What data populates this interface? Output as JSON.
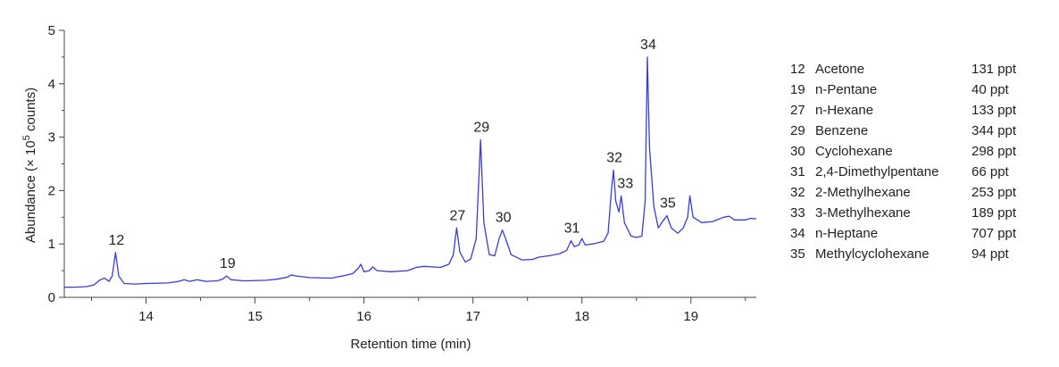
{
  "chart_data": {
    "type": "line",
    "title": "",
    "xlabel": "Retention time (min)",
    "ylabel": "Abundance (× 10",
    "ylabel_sup": "5",
    "ylabel_tail": " counts)",
    "xlim": [
      13.25,
      19.6
    ],
    "ylim": [
      0,
      5
    ],
    "x_ticks": [
      14,
      15,
      16,
      17,
      18,
      19
    ],
    "y_ticks": [
      0,
      1,
      2,
      3,
      4,
      5
    ],
    "grid": false,
    "line_color": "#3a3ae0",
    "series": [
      {
        "points": [
          [
            13.25,
            0.19
          ],
          [
            13.35,
            0.19
          ],
          [
            13.45,
            0.2
          ],
          [
            13.52,
            0.23
          ],
          [
            13.58,
            0.33
          ],
          [
            13.62,
            0.36
          ],
          [
            13.66,
            0.3
          ],
          [
            13.69,
            0.4
          ],
          [
            13.72,
            0.84
          ],
          [
            13.75,
            0.4
          ],
          [
            13.8,
            0.26
          ],
          [
            13.9,
            0.25
          ],
          [
            14.0,
            0.26
          ],
          [
            14.2,
            0.27
          ],
          [
            14.3,
            0.3
          ],
          [
            14.35,
            0.33
          ],
          [
            14.4,
            0.3
          ],
          [
            14.47,
            0.33
          ],
          [
            14.55,
            0.3
          ],
          [
            14.65,
            0.31
          ],
          [
            14.7,
            0.34
          ],
          [
            14.74,
            0.4
          ],
          [
            14.78,
            0.33
          ],
          [
            14.9,
            0.31
          ],
          [
            15.1,
            0.32
          ],
          [
            15.2,
            0.34
          ],
          [
            15.3,
            0.38
          ],
          [
            15.33,
            0.42
          ],
          [
            15.38,
            0.4
          ],
          [
            15.5,
            0.37
          ],
          [
            15.7,
            0.36
          ],
          [
            15.85,
            0.42
          ],
          [
            15.9,
            0.45
          ],
          [
            15.95,
            0.55
          ],
          [
            15.97,
            0.62
          ],
          [
            16.0,
            0.48
          ],
          [
            16.05,
            0.5
          ],
          [
            16.08,
            0.57
          ],
          [
            16.12,
            0.5
          ],
          [
            16.25,
            0.48
          ],
          [
            16.4,
            0.5
          ],
          [
            16.48,
            0.56
          ],
          [
            16.55,
            0.58
          ],
          [
            16.7,
            0.56
          ],
          [
            16.78,
            0.62
          ],
          [
            16.82,
            0.8
          ],
          [
            16.85,
            1.3
          ],
          [
            16.88,
            0.85
          ],
          [
            16.93,
            0.66
          ],
          [
            16.98,
            0.72
          ],
          [
            17.03,
            1.1
          ],
          [
            17.07,
            2.95
          ],
          [
            17.1,
            1.4
          ],
          [
            17.15,
            0.8
          ],
          [
            17.2,
            0.78
          ],
          [
            17.24,
            1.1
          ],
          [
            17.27,
            1.26
          ],
          [
            17.3,
            1.1
          ],
          [
            17.35,
            0.8
          ],
          [
            17.45,
            0.7
          ],
          [
            17.55,
            0.71
          ],
          [
            17.6,
            0.75
          ],
          [
            17.7,
            0.78
          ],
          [
            17.8,
            0.82
          ],
          [
            17.86,
            0.88
          ],
          [
            17.9,
            1.06
          ],
          [
            17.93,
            0.95
          ],
          [
            17.97,
            0.98
          ],
          [
            18.0,
            1.1
          ],
          [
            18.03,
            0.98
          ],
          [
            18.1,
            1.0
          ],
          [
            18.2,
            1.05
          ],
          [
            18.24,
            1.2
          ],
          [
            18.27,
            2.0
          ],
          [
            18.29,
            2.38
          ],
          [
            18.31,
            1.8
          ],
          [
            18.34,
            1.6
          ],
          [
            18.36,
            1.9
          ],
          [
            18.39,
            1.4
          ],
          [
            18.45,
            1.15
          ],
          [
            18.5,
            1.12
          ],
          [
            18.55,
            1.15
          ],
          [
            18.58,
            1.8
          ],
          [
            18.6,
            4.5
          ],
          [
            18.62,
            2.8
          ],
          [
            18.66,
            1.7
          ],
          [
            18.7,
            1.3
          ],
          [
            18.75,
            1.45
          ],
          [
            18.78,
            1.53
          ],
          [
            18.82,
            1.3
          ],
          [
            18.88,
            1.2
          ],
          [
            18.93,
            1.3
          ],
          [
            18.97,
            1.5
          ],
          [
            18.99,
            1.9
          ],
          [
            19.02,
            1.5
          ],
          [
            19.1,
            1.4
          ],
          [
            19.2,
            1.42
          ],
          [
            19.3,
            1.5
          ],
          [
            19.35,
            1.52
          ],
          [
            19.4,
            1.45
          ],
          [
            19.5,
            1.45
          ],
          [
            19.55,
            1.48
          ],
          [
            19.6,
            1.47
          ]
        ]
      }
    ],
    "peak_labels": [
      {
        "text": "12",
        "x": 13.72,
        "y": 0.84
      },
      {
        "text": "19",
        "x": 14.74,
        "y": 0.4
      },
      {
        "text": "27",
        "x": 16.85,
        "y": 1.3
      },
      {
        "text": "29",
        "x": 17.07,
        "y": 2.95
      },
      {
        "text": "30",
        "x": 17.27,
        "y": 1.26
      },
      {
        "text": "31",
        "x": 17.9,
        "y": 1.06
      },
      {
        "text": "32",
        "x": 18.29,
        "y": 2.38
      },
      {
        "text": "33",
        "x": 18.39,
        "y": 1.9
      },
      {
        "text": "34",
        "x": 18.6,
        "y": 4.5
      },
      {
        "text": "35",
        "x": 18.78,
        "y": 1.53
      }
    ],
    "legend_placement": "right"
  },
  "legend": [
    {
      "num": "12",
      "name": "Acetone",
      "amount": "131 ppt"
    },
    {
      "num": "19",
      "name": "n-Pentane",
      "amount": "40 ppt"
    },
    {
      "num": "27",
      "name": "n-Hexane",
      "amount": "133 ppt"
    },
    {
      "num": "29",
      "name": "Benzene",
      "amount": "344 ppt"
    },
    {
      "num": "30",
      "name": "Cyclohexane",
      "amount": "298 ppt"
    },
    {
      "num": "31",
      "name": "2,4-Dimethylpentane",
      "amount": "66 ppt"
    },
    {
      "num": "32",
      "name": "2-Methylhexane",
      "amount": "253 ppt"
    },
    {
      "num": "33",
      "name": "3-Methylhexane",
      "amount": "189 ppt"
    },
    {
      "num": "34",
      "name": "n-Heptane",
      "amount": "707 ppt"
    },
    {
      "num": "35",
      "name": "Methylcyclohexane",
      "amount": "94 ppt"
    }
  ]
}
